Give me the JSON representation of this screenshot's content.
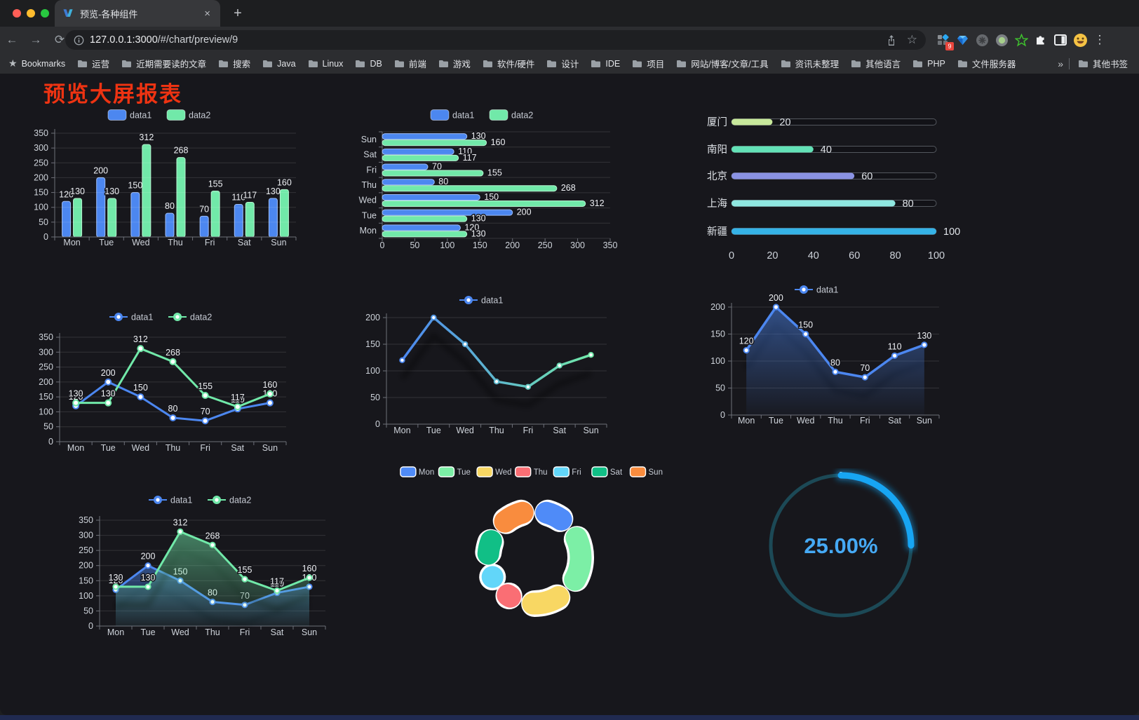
{
  "browser": {
    "tab": {
      "title": "预览-各种组件"
    },
    "url_host": "127.0.0.1:3000",
    "url_path": "/#/chart/preview/9",
    "bookmarks_label": "Bookmarks",
    "bookmarks": [
      "运营",
      "近期需要读的文章",
      "搜索",
      "Java",
      "Linux",
      "DB",
      "前端",
      "游戏",
      "软件/硬件",
      "设计",
      "IDE",
      "项目",
      "网站/博客/文章/工具",
      "资讯未整理",
      "其他语言",
      "PHP",
      "文件服务器"
    ],
    "other_bookmarks": "其他书签",
    "extension_badge": "9",
    "icons": {
      "close": "×",
      "plus": "+",
      "back": "←",
      "forward": "→",
      "reload": "⟳",
      "home": "⌂",
      "star_outline": "☆",
      "kebab": "⋮",
      "overflow": "»",
      "bookmarks_star": "★"
    }
  },
  "page": {
    "title": "预览大屏报表"
  },
  "chart_data": [
    {
      "id": "grouped-bar",
      "type": "bar",
      "title": "",
      "legend_position": "top",
      "categories": [
        "Mon",
        "Tue",
        "Wed",
        "Thu",
        "Fri",
        "Sat",
        "Sun"
      ],
      "series": [
        {
          "name": "data1",
          "color": "#4c87f0",
          "border": "#9dbdf8",
          "values": [
            120,
            200,
            150,
            80,
            70,
            110,
            130
          ]
        },
        {
          "name": "data2",
          "color": "#71e9a9",
          "border": "#b6f4d0",
          "values": [
            130,
            130,
            312,
            268,
            155,
            117,
            160
          ]
        }
      ],
      "ylim": [
        0,
        350
      ],
      "ytick": 50,
      "grid": true,
      "show_labels": true
    },
    {
      "id": "grouped-hbar",
      "type": "hbar",
      "title": "",
      "legend_position": "top",
      "categories": [
        "Sun",
        "Sat",
        "Fri",
        "Thu",
        "Wed",
        "Tue",
        "Mon"
      ],
      "series": [
        {
          "name": "data1",
          "color": "#4c87f0",
          "border": "#9dbdf8",
          "values": [
            130,
            110,
            70,
            80,
            150,
            200,
            120
          ]
        },
        {
          "name": "data2",
          "color": "#71e9a9",
          "border": "#b6f4d0",
          "values": [
            160,
            117,
            155,
            268,
            312,
            130,
            130
          ]
        }
      ],
      "xlim": [
        0,
        350
      ],
      "xtick": 50,
      "grid": true,
      "show_labels": true
    },
    {
      "id": "city-progress",
      "type": "progress",
      "items": [
        {
          "label": "厦门",
          "value": 20,
          "color": "#c7e89b"
        },
        {
          "label": "南阳",
          "value": 40,
          "color": "#63e2b7"
        },
        {
          "label": "北京",
          "value": 60,
          "color": "#8a92e3"
        },
        {
          "label": "上海",
          "value": 80,
          "color": "#8fe7e0"
        },
        {
          "label": "新疆",
          "value": 100,
          "color": "#35b3e7"
        }
      ],
      "xlim": [
        0,
        100
      ],
      "xticks": [
        0,
        20,
        40,
        60,
        80,
        100
      ]
    },
    {
      "id": "two-line",
      "type": "line",
      "title": "",
      "legend_position": "top",
      "categories": [
        "Mon",
        "Tue",
        "Wed",
        "Thu",
        "Fri",
        "Sat",
        "Sun"
      ],
      "series": [
        {
          "name": "data1",
          "color": "#4c87f0",
          "values": [
            120,
            200,
            150,
            80,
            70,
            110,
            130
          ]
        },
        {
          "name": "data2",
          "color": "#71e9a9",
          "values": [
            130,
            130,
            312,
            268,
            155,
            117,
            160
          ]
        }
      ],
      "ylim": [
        0,
        350
      ],
      "ytick": 50,
      "show_labels": true
    },
    {
      "id": "gradient-line",
      "type": "line-gradient",
      "title": "",
      "legend_position": "top",
      "categories": [
        "Mon",
        "Tue",
        "Wed",
        "Thu",
        "Fri",
        "Sat",
        "Sun"
      ],
      "series": [
        {
          "name": "data1",
          "gradient": [
            "#4c87f0",
            "#71e9a9"
          ],
          "values": [
            120,
            200,
            150,
            80,
            70,
            110,
            130
          ]
        }
      ],
      "ylim": [
        0,
        200
      ],
      "ytick": 50,
      "show_labels": false
    },
    {
      "id": "area-line",
      "type": "line-area",
      "title": "",
      "legend_position": "top",
      "categories": [
        "Mon",
        "Tue",
        "Wed",
        "Thu",
        "Fri",
        "Sat",
        "Sun"
      ],
      "series": [
        {
          "name": "data1",
          "color": "#4c87f0",
          "values": [
            120,
            200,
            150,
            80,
            70,
            110,
            130
          ]
        }
      ],
      "ylim": [
        0,
        200
      ],
      "ytick": 50,
      "show_labels": true
    },
    {
      "id": "dual-area",
      "type": "area",
      "title": "",
      "legend_position": "top",
      "categories": [
        "Mon",
        "Tue",
        "Wed",
        "Thu",
        "Fri",
        "Sat",
        "Sun"
      ],
      "series": [
        {
          "name": "data1",
          "color": "#4c87f0",
          "values": [
            120,
            200,
            150,
            80,
            70,
            110,
            130
          ]
        },
        {
          "name": "data2",
          "color": "#71e9a9",
          "values": [
            130,
            130,
            312,
            268,
            155,
            117,
            160
          ]
        }
      ],
      "ylim": [
        0,
        350
      ],
      "ytick": 50,
      "show_labels": true
    },
    {
      "id": "donut",
      "type": "donut",
      "legend_position": "top",
      "slices": [
        {
          "label": "Mon",
          "value": 120,
          "color": "#4f8bf8"
        },
        {
          "label": "Tue",
          "value": 200,
          "color": "#7cefa6"
        },
        {
          "label": "Wed",
          "value": 150,
          "color": "#f8d763"
        },
        {
          "label": "Thu",
          "value": 80,
          "color": "#fa6e74"
        },
        {
          "label": "Fri",
          "value": 70,
          "color": "#62d6f9"
        },
        {
          "label": "Sat",
          "value": 110,
          "color": "#11bf86"
        },
        {
          "label": "Sun",
          "value": 130,
          "color": "#f98c3e"
        }
      ]
    },
    {
      "id": "gauge",
      "type": "gauge",
      "percent": 25,
      "value_label": "25.00%",
      "arc_color": "#17a5f3",
      "track_color": "#1c4956",
      "text_color": "#46aaf5"
    }
  ]
}
